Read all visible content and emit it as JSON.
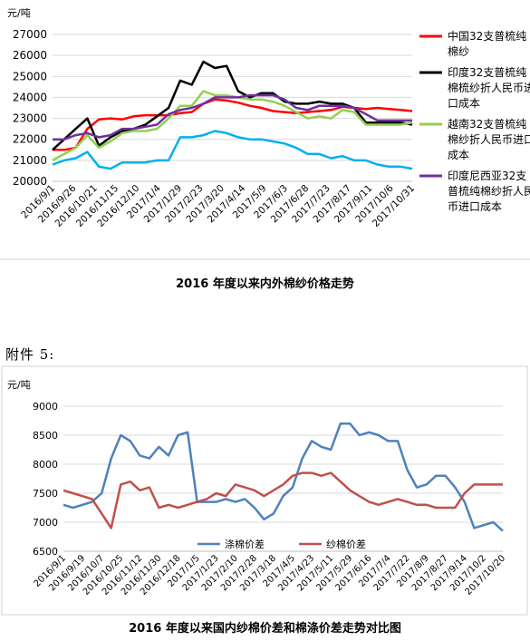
{
  "appendix_label": "附件 5:",
  "chart_data": [
    {
      "type": "line",
      "title": "2016 年度以来内外棉纱价格走势",
      "ylabel": "元/吨",
      "ylim": [
        20000,
        27000
      ],
      "y_ticks": [
        "20000",
        "21000",
        "22000",
        "23000",
        "24000",
        "25000",
        "26000",
        "27000"
      ],
      "x_tick_labels": [
        "2016/9/1",
        "2016/9/26",
        "2016/10/21",
        "2016/11/15",
        "2016/12/10",
        "2017/1/4",
        "2017/1/29",
        "2017/2/23",
        "2017/3/20",
        "2017/4/14",
        "2017/5/9",
        "2017/6/3",
        "2017/6/28",
        "2017/7/23",
        "2017/8/17",
        "2017/9/11",
        "2017/10/6",
        "2017/10/31"
      ],
      "grid": true,
      "legend_position": "right",
      "series": [
        {
          "name": "中国32支普梳纯棉纱",
          "color": "#ff0000",
          "values": [
            21500,
            21500,
            21600,
            22500,
            22950,
            23000,
            22950,
            23100,
            23150,
            23150,
            23150,
            23250,
            23300,
            23700,
            23900,
            23850,
            23750,
            23600,
            23500,
            23350,
            23300,
            23250,
            23300,
            23350,
            23400,
            23550,
            23500,
            23450,
            23500,
            23450,
            23400,
            23350
          ]
        },
        {
          "name": "印度32支普梳纯棉梳纱折人民币进口成本",
          "color": "#000000",
          "values": [
            21500,
            22000,
            22500,
            23000,
            21700,
            22100,
            22400,
            22500,
            22700,
            23100,
            23500,
            24800,
            24600,
            25700,
            25400,
            25500,
            24300,
            24000,
            24200,
            24200,
            23800,
            23700,
            23700,
            23800,
            23700,
            23700,
            23500,
            22800,
            22800,
            22800,
            22800,
            22700
          ]
        },
        {
          "name": "越南32支普梳纯棉纱折人民币进口成本",
          "color": "#92d050",
          "values": [
            21000,
            21300,
            21600,
            22200,
            21600,
            21900,
            22300,
            22400,
            22400,
            22500,
            23000,
            23600,
            23600,
            24300,
            24100,
            24100,
            24000,
            23900,
            23900,
            23800,
            23600,
            23300,
            23000,
            23100,
            23000,
            23400,
            23300,
            22700,
            22700,
            22700,
            22700,
            22800
          ]
        },
        {
          "name": "印度尼西亚32支普梳纯棉纱折人民币进口成本",
          "color": "#7030a0",
          "values": [
            22000,
            22000,
            22200,
            22300,
            22100,
            22200,
            22500,
            22500,
            22600,
            22700,
            23200,
            23400,
            23500,
            23700,
            24000,
            24000,
            24000,
            24100,
            24100,
            24100,
            23900,
            23500,
            23400,
            23600,
            23600,
            23600,
            23500,
            23200,
            22900,
            22900,
            22900,
            22900
          ]
        },
        {
          "name": "",
          "color": "#00b0f0",
          "values": [
            20800,
            21000,
            21100,
            21400,
            20700,
            20600,
            20900,
            20900,
            20900,
            21000,
            21000,
            22100,
            22100,
            22200,
            22400,
            22300,
            22100,
            22000,
            22000,
            21900,
            21800,
            21600,
            21300,
            21300,
            21100,
            21200,
            21000,
            21000,
            20800,
            20700,
            20700,
            20600
          ]
        }
      ]
    },
    {
      "type": "line",
      "title": "2016 年度以来国内纱棉价差和棉涤价差走势对比图",
      "ylabel": "元/吨",
      "ylim": [
        6500,
        9000
      ],
      "y_ticks": [
        "6500",
        "7000",
        "7500",
        "8000",
        "8500",
        "9000"
      ],
      "x_tick_labels": [
        "2016/9/1",
        "2016/9/19",
        "2016/10/7",
        "2016/10/25",
        "2016/11/12",
        "2016/11/30",
        "2016/12/18",
        "2017/1/5",
        "2017/1/23",
        "2017/2/10",
        "2017/2/28",
        "2017/3/18",
        "2017/4/5",
        "2017/4/23",
        "2017/5/11",
        "2017/5/29",
        "2017/6/16",
        "2017/7/4",
        "2017/7/22",
        "2017/8/9",
        "2017/8/27",
        "2017/9/14",
        "2017/10/2",
        "2017/10/20"
      ],
      "grid": true,
      "legend_position": "bottom",
      "series": [
        {
          "name": "涤棉价差",
          "color": "#4f81bd",
          "values": [
            7300,
            7250,
            7300,
            7350,
            7500,
            8100,
            8500,
            8400,
            8150,
            8100,
            8300,
            8150,
            8500,
            8550,
            7350,
            7350,
            7350,
            7400,
            7350,
            7400,
            7250,
            7050,
            7150,
            7450,
            7600,
            8100,
            8400,
            8300,
            8250,
            8700,
            8700,
            8500,
            8550,
            8500,
            8400,
            8400,
            7900,
            7600,
            7650,
            7800,
            7800,
            7600,
            7350,
            6900,
            6950,
            7000,
            6850
          ]
        },
        {
          "name": "纱棉价差",
          "color": "#c0504d",
          "values": [
            7550,
            7500,
            7450,
            7400,
            7150,
            6900,
            7650,
            7700,
            7550,
            7600,
            7250,
            7300,
            7250,
            7300,
            7350,
            7400,
            7500,
            7450,
            7650,
            7600,
            7550,
            7450,
            7550,
            7650,
            7800,
            7850,
            7850,
            7800,
            7850,
            7700,
            7550,
            7450,
            7350,
            7300,
            7350,
            7400,
            7350,
            7300,
            7300,
            7250,
            7250,
            7250,
            7500,
            7650,
            7650,
            7650,
            7650
          ]
        }
      ]
    }
  ]
}
